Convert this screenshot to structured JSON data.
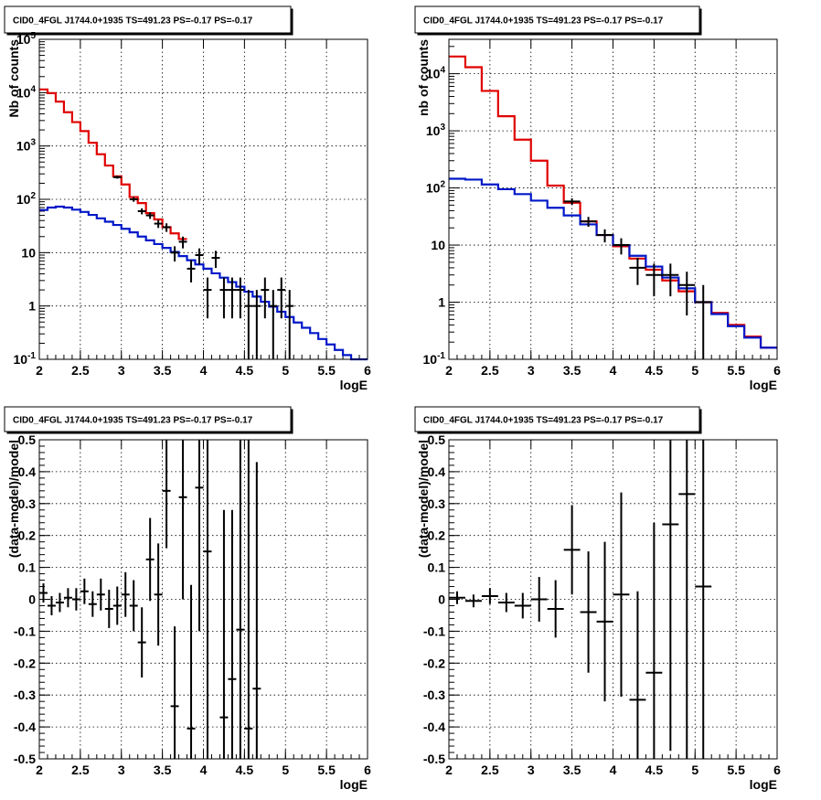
{
  "colors": {
    "data": "#000000",
    "total_model": "#e00000",
    "background_model": "#0018c8",
    "grid": "#000000"
  },
  "chart_data": [
    {
      "type": "line",
      "title": "CID0_4FGL J1744.0+1935 TS=491.23 PS=-0.17 PS=-0.17",
      "xlabel": "logE",
      "ylabel": "Nb of counts",
      "log_y": true,
      "grid": true,
      "xlim": [
        2,
        6
      ],
      "ylim": [
        0.1,
        100000
      ],
      "x_ticks": [
        "2",
        "2.5",
        "3",
        "3.5",
        "4",
        "4.5",
        "5",
        "5.5",
        "6"
      ],
      "y_ticks": [
        "10^-1",
        "1",
        "10",
        "10^2",
        "10^3",
        "10^4",
        "10^5"
      ],
      "bin_width": 0.1,
      "series": [
        {
          "style": "step",
          "color": "#e00000",
          "x": [
            2.0,
            2.1,
            2.2,
            2.3,
            2.4,
            2.5,
            2.6,
            2.7,
            2.8,
            2.9,
            3.0,
            3.1,
            3.2,
            3.3,
            3.4,
            3.5,
            3.6,
            3.7
          ],
          "y": [
            11500,
            9800,
            6800,
            4300,
            2800,
            1900,
            1150,
            700,
            430,
            270,
            190,
            110,
            85,
            55,
            42,
            30,
            23,
            18
          ]
        },
        {
          "style": "step",
          "color": "#0018c8",
          "x": [
            2.0,
            2.1,
            2.2,
            2.3,
            2.4,
            2.5,
            2.6,
            2.7,
            2.8,
            2.9,
            3.0,
            3.1,
            3.2,
            3.3,
            3.4,
            3.5,
            3.6,
            3.7,
            3.8,
            3.9,
            4.0,
            4.1,
            4.2,
            4.3,
            4.4,
            4.5,
            4.6,
            4.7,
            4.8,
            4.9,
            5.0,
            5.1,
            5.2,
            5.3,
            5.4,
            5.5,
            5.6,
            5.7,
            5.8,
            5.9
          ],
          "y": [
            63,
            70,
            73,
            70,
            64,
            58,
            51,
            44,
            38,
            33,
            28,
            24,
            20,
            17,
            14.5,
            12.3,
            10.3,
            8.6,
            7.2,
            6.0,
            5.0,
            4.1,
            3.4,
            2.8,
            2.3,
            1.85,
            1.5,
            1.2,
            0.97,
            0.78,
            0.62,
            0.49,
            0.39,
            0.31,
            0.24,
            0.19,
            0.15,
            0.12,
            0.1,
            0.1
          ]
        },
        {
          "style": "points",
          "color": "#000000",
          "x": [
            2.95,
            3.15,
            3.25,
            3.35,
            3.45,
            3.55,
            3.65,
            3.75,
            3.85,
            3.95,
            4.05,
            4.15,
            4.25,
            4.35,
            4.45,
            4.55,
            4.65,
            4.75,
            4.85,
            4.95,
            5.05
          ],
          "y": [
            260,
            100,
            60,
            50,
            35,
            30,
            10,
            16,
            5,
            9,
            2,
            8,
            2,
            2,
            2,
            1,
            1,
            2,
            1,
            2,
            1
          ]
        }
      ]
    },
    {
      "type": "line",
      "title": "CID0_4FGL J1744.0+1935 TS=491.23 PS=-0.17 PS=-0.17",
      "xlabel": "logE",
      "ylabel": "nb of counts",
      "log_y": true,
      "grid": true,
      "xlim": [
        2,
        6
      ],
      "ylim": [
        0.1,
        40000
      ],
      "x_ticks": [
        "2",
        "2.5",
        "3",
        "3.5",
        "4",
        "4.5",
        "5",
        "5.5",
        "6"
      ],
      "y_ticks": [
        "10^-1",
        "1",
        "10",
        "10^2",
        "10^3",
        "10^4"
      ],
      "bin_width": 0.2,
      "series": [
        {
          "style": "step",
          "color": "#e00000",
          "x": [
            2.0,
            2.2,
            2.4,
            2.6,
            2.8,
            3.0,
            3.2,
            3.4,
            3.6,
            3.8,
            4.0,
            4.2,
            4.4,
            4.6,
            4.8,
            5.0,
            5.2,
            5.4,
            5.6,
            5.8
          ],
          "y": [
            20000,
            13000,
            5000,
            1800,
            700,
            300,
            110,
            55,
            26,
            15,
            9.5,
            5.8,
            3.7,
            2.4,
            1.55,
            1.0,
            0.65,
            0.4,
            0.25,
            0.16
          ]
        },
        {
          "style": "step",
          "color": "#0018c8",
          "x": [
            2.0,
            2.2,
            2.4,
            2.6,
            2.8,
            3.0,
            3.2,
            3.4,
            3.6,
            3.8,
            4.0,
            4.2,
            4.4,
            4.6,
            4.8,
            5.0,
            5.2,
            5.4,
            5.6,
            5.8
          ],
          "y": [
            145,
            140,
            115,
            95,
            78,
            60,
            45,
            33,
            23,
            15,
            10,
            6.5,
            4.2,
            2.7,
            1.75,
            1.0,
            0.62,
            0.38,
            0.24,
            0.16
          ]
        },
        {
          "style": "points",
          "color": "#000000",
          "x": [
            3.5,
            3.7,
            3.9,
            4.1,
            4.3,
            4.5,
            4.7,
            4.9,
            5.1
          ],
          "y": [
            58,
            26,
            15,
            10,
            4,
            3,
            3,
            2,
            1
          ]
        }
      ]
    },
    {
      "type": "scatter",
      "title": "CID0_4FGL J1744.0+1935 TS=491.23 PS=-0.17 PS=-0.17",
      "xlabel": "logE",
      "ylabel": "(data-model)/model",
      "grid": true,
      "xlim": [
        2,
        6
      ],
      "ylim": [
        -0.5,
        0.5
      ],
      "x_ticks": [
        "2",
        "2.5",
        "3",
        "3.5",
        "4",
        "4.5",
        "5",
        "5.5",
        "6"
      ],
      "y_ticks": [
        "-0.5",
        "-0.4",
        "-0.3",
        "-0.2",
        "-0.1",
        "0",
        "0.1",
        "0.2",
        "0.3",
        "0.4",
        "0.5"
      ],
      "bin_width": 0.1,
      "series": [
        {
          "style": "errorbars",
          "color": "#000000",
          "x": [
            2.05,
            2.15,
            2.25,
            2.35,
            2.45,
            2.55,
            2.65,
            2.75,
            2.85,
            2.95,
            3.05,
            3.15,
            3.25,
            3.35,
            3.45,
            3.55,
            3.65,
            3.75,
            3.85,
            3.95,
            4.05,
            4.25,
            4.35,
            4.45,
            4.55,
            4.65
          ],
          "y": [
            0.02,
            -0.02,
            -0.01,
            0.005,
            0.0,
            0.025,
            -0.015,
            0.015,
            -0.03,
            -0.02,
            0.015,
            -0.02,
            -0.135,
            0.125,
            0.015,
            0.34,
            -0.335,
            0.32,
            -0.405,
            0.35,
            0.15,
            -0.37,
            -0.25,
            -0.095,
            -0.405,
            -0.28
          ],
          "err": [
            0.03,
            0.03,
            0.03,
            0.03,
            0.035,
            0.04,
            0.04,
            0.05,
            0.06,
            0.06,
            0.07,
            0.08,
            0.11,
            0.13,
            0.16,
            0.18,
            0.25,
            0.32,
            0.45,
            0.45,
            1.0,
            0.65,
            0.53,
            0.75,
            0.95,
            0.71
          ]
        }
      ]
    },
    {
      "type": "scatter",
      "title": "CID0_4FGL J1744.0+1935 TS=491.23 PS=-0.17 PS=-0.17",
      "xlabel": "logE",
      "ylabel": "(data-model)/model",
      "grid": true,
      "xlim": [
        2,
        6
      ],
      "ylim": [
        -0.5,
        0.5
      ],
      "x_ticks": [
        "2",
        "2.5",
        "3",
        "3.5",
        "4",
        "4.5",
        "5",
        "5.5",
        "6"
      ],
      "y_ticks": [
        "-0.5",
        "-0.4",
        "-0.3",
        "-0.2",
        "-0.1",
        "0",
        "0.1",
        "0.2",
        "0.3",
        "0.4",
        "0.5"
      ],
      "bin_width": 0.2,
      "series": [
        {
          "style": "errorbars",
          "color": "#000000",
          "x": [
            2.1,
            2.3,
            2.5,
            2.7,
            2.9,
            3.1,
            3.3,
            3.5,
            3.7,
            3.9,
            4.1,
            4.3,
            4.5,
            4.7,
            4.9,
            5.1
          ],
          "y": [
            0.005,
            -0.005,
            0.01,
            -0.01,
            -0.02,
            0.0,
            -0.03,
            0.155,
            -0.04,
            -0.07,
            0.015,
            -0.315,
            -0.23,
            0.235,
            0.33,
            0.04
          ],
          "err": [
            0.02,
            0.02,
            0.025,
            0.03,
            0.04,
            0.07,
            0.09,
            0.14,
            0.19,
            0.25,
            0.32,
            0.34,
            0.47,
            0.71,
            0.9,
            1.0
          ]
        }
      ]
    }
  ]
}
